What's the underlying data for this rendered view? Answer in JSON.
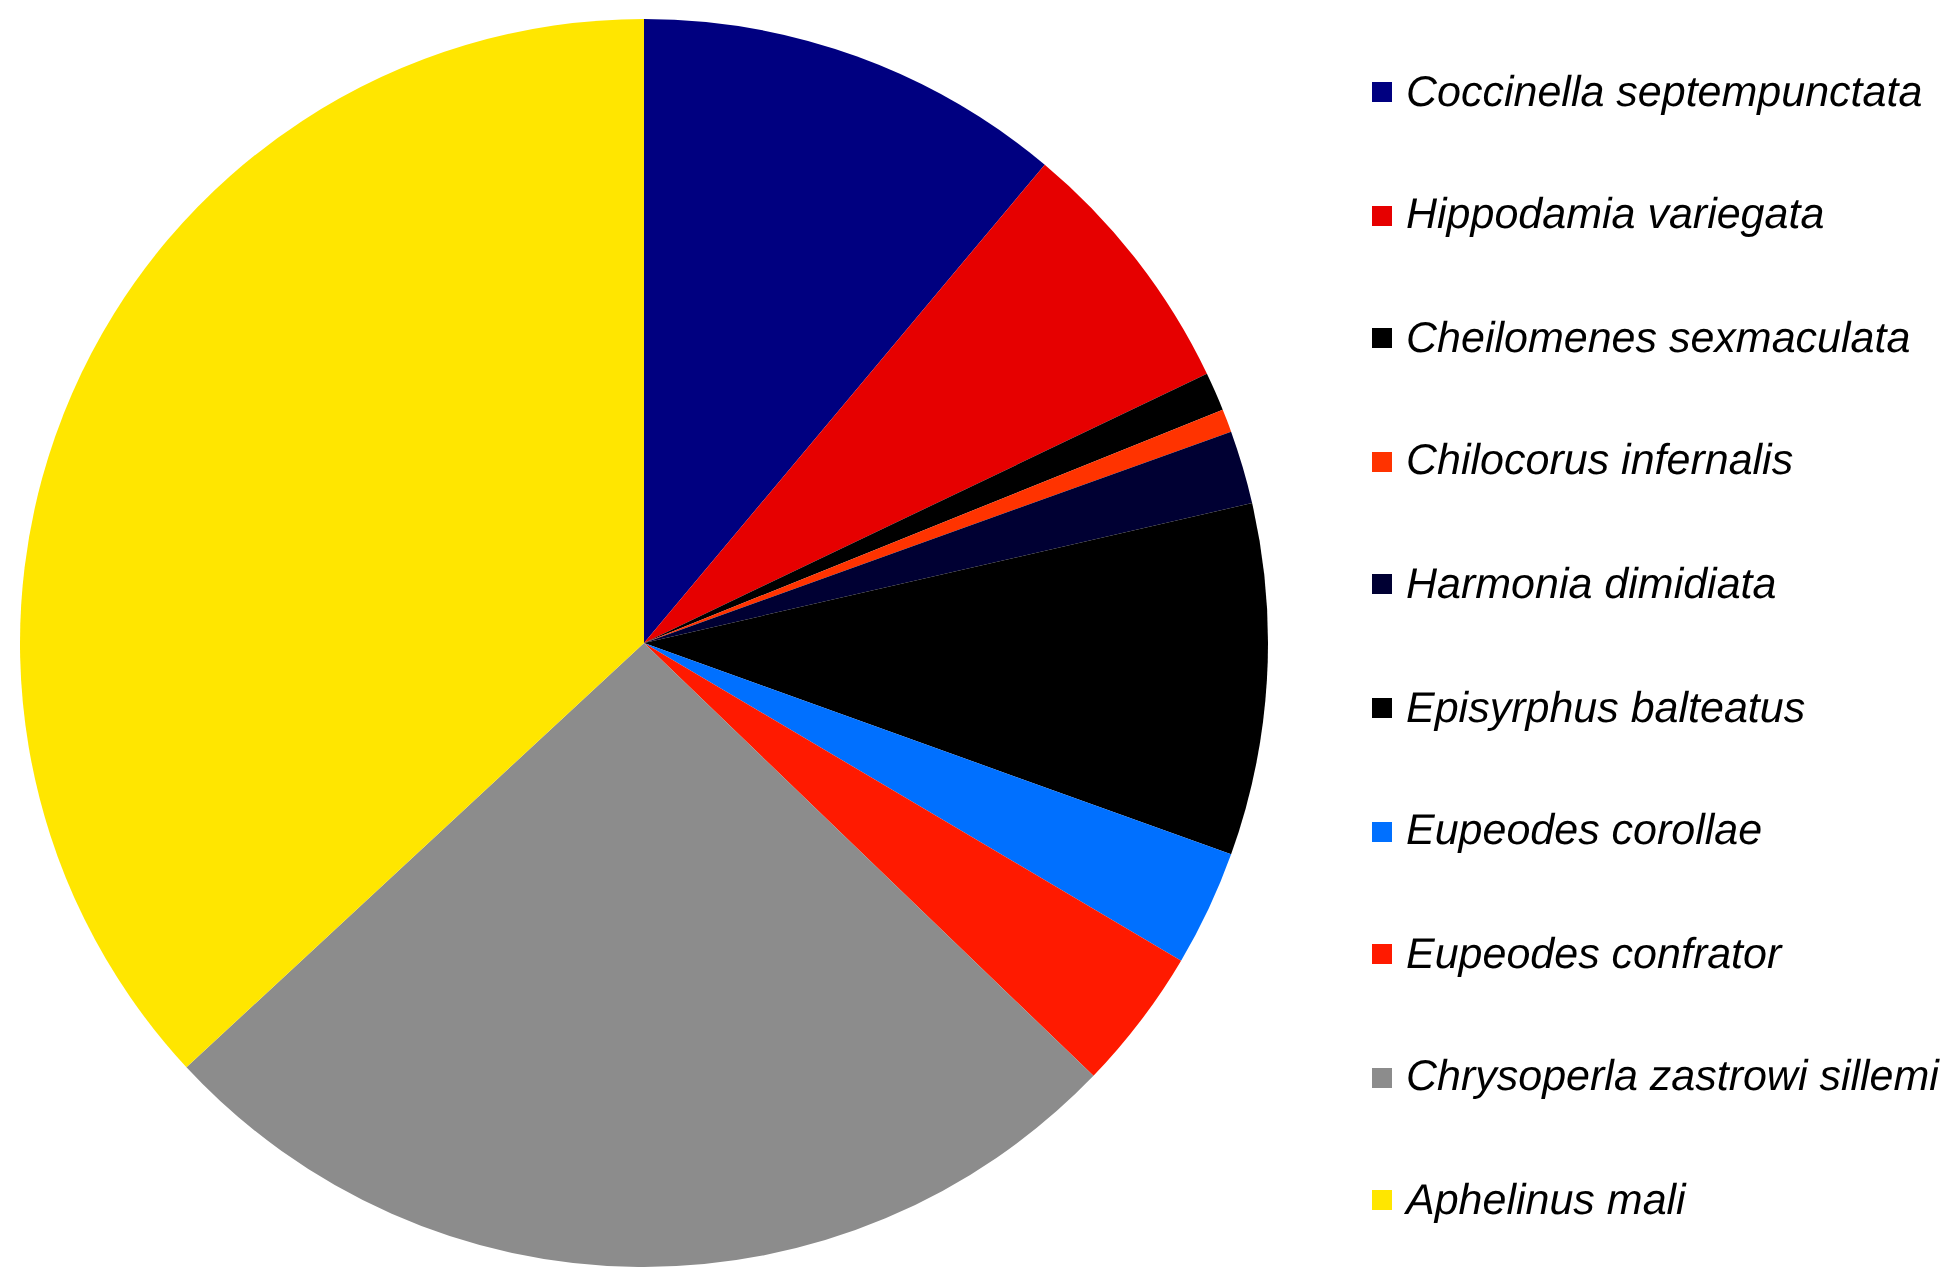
{
  "chart_data": {
    "type": "pie",
    "categories": [
      "Coccinella septempunctata",
      "Hippodamia variegata",
      "Cheilomenes sexmaculata",
      "Chilocorus infernalis",
      "Harmonia dimidiata",
      "Episyrphus balteatus",
      "Eupeodes corollae",
      "Eupeodes confrator",
      "Chrysoperla zastrowi sillemi",
      "Aphelinus mali"
    ],
    "values": [
      11.1,
      6.8,
      1.0,
      0.6,
      1.9,
      9.1,
      3.0,
      3.7,
      25.9,
      36.9
    ],
    "colors": [
      "#000080",
      "#e60000",
      "#000000",
      "#ff3300",
      "#000033",
      "#000000",
      "#0070ff",
      "#ff1a00",
      "#8c8c8c",
      "#ffe600"
    ],
    "legend": "right"
  }
}
